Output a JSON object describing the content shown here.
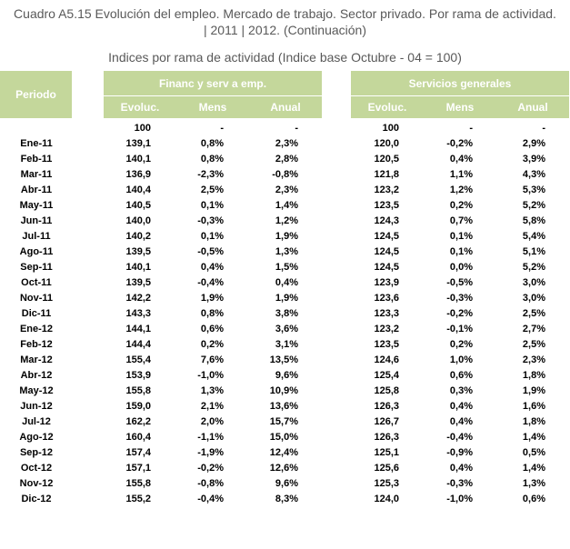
{
  "title_line1": "Cuadro A5.15 Evolución del empleo. Mercado de trabajo. Sector privado. Por rama de actividad.",
  "title_line2": "| 2011 | 2012. (Continuación)",
  "subtitle": "Indices por rama de actividad (Indice base Octubre - 04 = 100)",
  "table": {
    "period_header": "Periodo",
    "groups": [
      {
        "label": "Financ y serv a emp.",
        "columns": [
          "Evoluc.",
          "Mens",
          "Anual"
        ]
      },
      {
        "label": "Servicios generales",
        "columns": [
          "Evoluc.",
          "Mens",
          "Anual"
        ]
      }
    ],
    "base_row": {
      "period": "",
      "values": [
        "100",
        "-",
        "-",
        "100",
        "-",
        "-"
      ]
    },
    "rows": [
      {
        "period": "Ene-11",
        "values": [
          "139,1",
          "0,8%",
          "2,3%",
          "120,0",
          "-0,2%",
          "2,9%"
        ]
      },
      {
        "period": "Feb-11",
        "values": [
          "140,1",
          "0,8%",
          "2,8%",
          "120,5",
          "0,4%",
          "3,9%"
        ]
      },
      {
        "period": "Mar-11",
        "values": [
          "136,9",
          "-2,3%",
          "-0,8%",
          "121,8",
          "1,1%",
          "4,3%"
        ]
      },
      {
        "period": "Abr-11",
        "values": [
          "140,4",
          "2,5%",
          "2,3%",
          "123,2",
          "1,2%",
          "5,3%"
        ]
      },
      {
        "period": "May-11",
        "values": [
          "140,5",
          "0,1%",
          "1,4%",
          "123,5",
          "0,2%",
          "5,2%"
        ]
      },
      {
        "period": "Jun-11",
        "values": [
          "140,0",
          "-0,3%",
          "1,2%",
          "124,3",
          "0,7%",
          "5,8%"
        ]
      },
      {
        "period": "Jul-11",
        "values": [
          "140,2",
          "0,1%",
          "1,9%",
          "124,5",
          "0,1%",
          "5,4%"
        ]
      },
      {
        "period": "Ago-11",
        "values": [
          "139,5",
          "-0,5%",
          "1,3%",
          "124,5",
          "0,1%",
          "5,1%"
        ]
      },
      {
        "period": "Sep-11",
        "values": [
          "140,1",
          "0,4%",
          "1,5%",
          "124,5",
          "0,0%",
          "5,2%"
        ]
      },
      {
        "period": "Oct-11",
        "values": [
          "139,5",
          "-0,4%",
          "0,4%",
          "123,9",
          "-0,5%",
          "3,0%"
        ]
      },
      {
        "period": "Nov-11",
        "values": [
          "142,2",
          "1,9%",
          "1,9%",
          "123,6",
          "-0,3%",
          "3,0%"
        ]
      },
      {
        "period": "Dic-11",
        "values": [
          "143,3",
          "0,8%",
          "3,8%",
          "123,3",
          "-0,2%",
          "2,5%"
        ]
      },
      {
        "period": "Ene-12",
        "values": [
          "144,1",
          "0,6%",
          "3,6%",
          "123,2",
          "-0,1%",
          "2,7%"
        ]
      },
      {
        "period": "Feb-12",
        "values": [
          "144,4",
          "0,2%",
          "3,1%",
          "123,5",
          "0,2%",
          "2,5%"
        ]
      },
      {
        "period": "Mar-12",
        "values": [
          "155,4",
          "7,6%",
          "13,5%",
          "124,6",
          "1,0%",
          "2,3%"
        ]
      },
      {
        "period": "Abr-12",
        "values": [
          "153,9",
          "-1,0%",
          "9,6%",
          "125,4",
          "0,6%",
          "1,8%"
        ]
      },
      {
        "period": "May-12",
        "values": [
          "155,8",
          "1,3%",
          "10,9%",
          "125,8",
          "0,3%",
          "1,9%"
        ]
      },
      {
        "period": "Jun-12",
        "values": [
          "159,0",
          "2,1%",
          "13,6%",
          "126,3",
          "0,4%",
          "1,6%"
        ]
      },
      {
        "period": "Jul-12",
        "values": [
          "162,2",
          "2,0%",
          "15,7%",
          "126,7",
          "0,4%",
          "1,8%"
        ]
      },
      {
        "period": "Ago-12",
        "values": [
          "160,4",
          "-1,1%",
          "15,0%",
          "126,3",
          "-0,4%",
          "1,4%"
        ]
      },
      {
        "period": "Sep-12",
        "values": [
          "157,4",
          "-1,9%",
          "12,4%",
          "125,1",
          "-0,9%",
          "0,5%"
        ]
      },
      {
        "period": "Oct-12",
        "values": [
          "157,1",
          "-0,2%",
          "12,6%",
          "125,6",
          "0,4%",
          "1,4%"
        ]
      },
      {
        "period": "Nov-12",
        "values": [
          "155,8",
          "-0,8%",
          "9,6%",
          "125,3",
          "-0,3%",
          "1,3%"
        ]
      },
      {
        "period": "Dic-12",
        "values": [
          "155,2",
          "-0,4%",
          "8,3%",
          "124,0",
          "-1,0%",
          "0,6%"
        ]
      }
    ]
  },
  "colors": {
    "header_bg": "#c4d79b",
    "header_text": "#ffffff",
    "title_text": "#595959"
  }
}
